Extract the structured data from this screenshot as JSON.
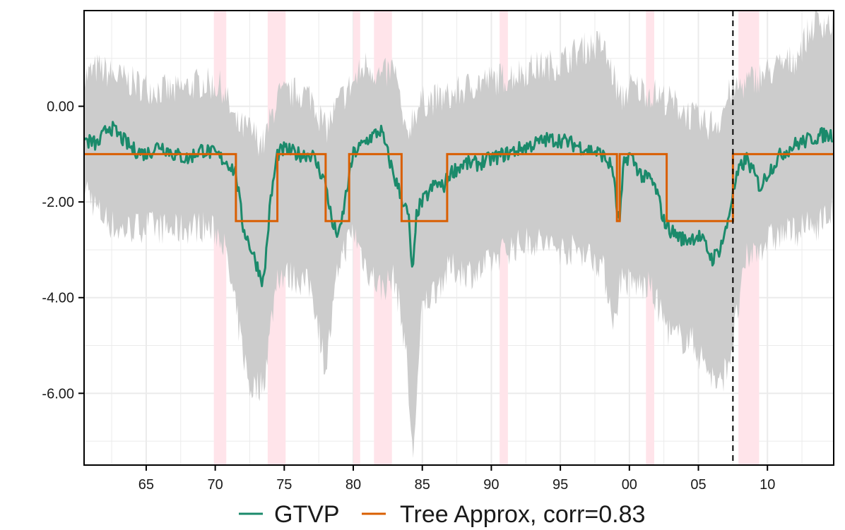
{
  "chart_data": {
    "type": "line",
    "title": "",
    "xlabel": "",
    "ylabel": "",
    "xlim": [
      1960.5,
      2014.8
    ],
    "ylim": [
      -7.5,
      2.0
    ],
    "grid": true,
    "legend_position": "bottom",
    "x_ticks": [
      1965,
      1970,
      1975,
      1980,
      1985,
      1990,
      1995,
      2000,
      2005,
      2010
    ],
    "x_tick_labels": [
      "65",
      "70",
      "75",
      "80",
      "85",
      "90",
      "95",
      "00",
      "05",
      "10"
    ],
    "y_ticks": [
      0,
      -2,
      -4,
      -6
    ],
    "y_tick_labels": [
      "0.00",
      "-2.00",
      "-4.00",
      "-6.00"
    ],
    "recession_bands": [
      [
        1969.9,
        1970.8
      ],
      [
        1973.8,
        1975.1
      ],
      [
        1980.0,
        1980.5
      ],
      [
        1981.5,
        1982.8
      ],
      [
        1990.6,
        1991.2
      ],
      [
        2001.2,
        2001.8
      ],
      [
        2007.9,
        2009.4
      ]
    ],
    "vline_x": 2007.5,
    "band_anchors": {
      "x": [
        1960.5,
        1961.5,
        1963.0,
        1965.0,
        1967.0,
        1969.0,
        1970.5,
        1971.5,
        1972.5,
        1973.5,
        1974.5,
        1976.0,
        1977.0,
        1978.0,
        1979.0,
        1980.0,
        1981.0,
        1982.0,
        1983.0,
        1983.8,
        1984.3,
        1985.0,
        1987.0,
        1989.0,
        1991.0,
        1993.0,
        1995.0,
        1996.5,
        1998.0,
        1999.0,
        1999.3,
        2000.0,
        2001.5,
        2003.0,
        2004.5,
        2005.5,
        2006.5,
        2007.3,
        2008.5,
        2010.0,
        2012.0,
        2013.5,
        2014.8
      ],
      "upper": [
        0.6,
        0.8,
        0.6,
        0.4,
        0.3,
        0.5,
        0.4,
        -0.4,
        -0.5,
        -0.8,
        0.2,
        0.3,
        0.2,
        -0.5,
        0.1,
        0.5,
        0.9,
        0.6,
        0.8,
        -0.7,
        -0.2,
        0.1,
        0.2,
        0.5,
        0.6,
        0.8,
        0.9,
        1.2,
        1.3,
        0.5,
        0.1,
        0.4,
        0.3,
        0.1,
        -0.2,
        -0.4,
        -0.3,
        0.3,
        0.5,
        0.7,
        1.0,
        1.8,
        1.7
      ],
      "lower": [
        -1.6,
        -2.2,
        -2.6,
        -2.5,
        -2.6,
        -2.5,
        -2.7,
        -4.3,
        -5.9,
        -5.8,
        -3.5,
        -3.6,
        -3.8,
        -5.5,
        -3.2,
        -2.6,
        -3.4,
        -3.8,
        -3.6,
        -5.0,
        -7.4,
        -4.2,
        -3.4,
        -3.5,
        -3.0,
        -2.8,
        -3.0,
        -3.0,
        -3.3,
        -4.6,
        -3.6,
        -3.7,
        -3.8,
        -4.8,
        -4.9,
        -5.4,
        -5.9,
        -5.2,
        -3.2,
        -2.8,
        -2.6,
        -2.5,
        -2.2
      ]
    },
    "gtvp_anchors": {
      "x": [
        1960.5,
        1961.5,
        1962.3,
        1963.0,
        1964.0,
        1965.0,
        1966.0,
        1967.0,
        1968.0,
        1969.0,
        1970.0,
        1970.5,
        1971.0,
        1971.5,
        1972.0,
        1973.0,
        1973.5,
        1974.0,
        1974.5,
        1975.0,
        1976.0,
        1977.0,
        1977.5,
        1978.0,
        1978.5,
        1979.0,
        1979.5,
        1980.0,
        1981.0,
        1982.0,
        1983.0,
        1983.5,
        1984.0,
        1984.3,
        1984.6,
        1985.0,
        1986.0,
        1986.5,
        1987.0,
        1988.0,
        1989.0,
        1990.0,
        1991.0,
        1992.0,
        1993.0,
        1994.0,
        1995.0,
        1996.0,
        1997.0,
        1998.0,
        1998.8,
        1999.1,
        1999.3,
        1999.6,
        2000.0,
        2001.0,
        2001.5,
        2002.0,
        2002.5,
        2003.0,
        2004.0,
        2005.0,
        2005.5,
        2006.0,
        2006.5,
        2007.0,
        2007.5,
        2008.0,
        2008.5,
        2009.0,
        2009.5,
        2010.0,
        2011.0,
        2012.0,
        2013.0,
        2014.0,
        2014.8
      ],
      "y": [
        -0.7,
        -0.8,
        -0.4,
        -0.6,
        -0.9,
        -1.0,
        -0.8,
        -1.0,
        -1.1,
        -0.9,
        -1.0,
        -1.1,
        -1.2,
        -1.4,
        -2.5,
        -3.3,
        -3.7,
        -2.0,
        -1.0,
        -0.9,
        -1.0,
        -1.0,
        -1.3,
        -1.6,
        -2.5,
        -2.7,
        -1.8,
        -1.0,
        -0.7,
        -0.5,
        -1.5,
        -1.9,
        -2.3,
        -3.6,
        -2.2,
        -2.0,
        -1.6,
        -1.7,
        -1.4,
        -1.2,
        -1.2,
        -1.1,
        -1.0,
        -0.9,
        -0.8,
        -0.7,
        -0.7,
        -0.8,
        -0.9,
        -1.0,
        -1.3,
        -2.2,
        -2.4,
        -1.2,
        -1.0,
        -1.5,
        -1.5,
        -1.8,
        -2.4,
        -2.6,
        -2.8,
        -2.7,
        -2.9,
        -3.2,
        -3.0,
        -2.6,
        -1.8,
        -1.3,
        -1.1,
        -1.4,
        -1.7,
        -1.4,
        -1.0,
        -0.8,
        -0.7,
        -0.6,
        -0.6
      ]
    },
    "series": [
      {
        "name": "GTVP",
        "color": "#1b8a6b"
      },
      {
        "name": "Tree Approx, corr=0.83",
        "color": "#d95f02",
        "step_x": [
          1960.5,
          1971.5,
          1971.5,
          1974.5,
          1974.5,
          1978.0,
          1978.0,
          1979.7,
          1979.7,
          1983.5,
          1983.5,
          1986.8,
          1986.8,
          1999.1,
          1999.1,
          1999.3,
          1999.3,
          2002.7,
          2002.7,
          2007.5,
          2007.5,
          2014.8
        ],
        "step_y": [
          -1.0,
          -1.0,
          -2.4,
          -2.4,
          -1.0,
          -1.0,
          -2.4,
          -2.4,
          -1.0,
          -1.0,
          -2.4,
          -2.4,
          -1.0,
          -1.0,
          -2.4,
          -2.4,
          -1.0,
          -1.0,
          -2.4,
          -2.4,
          -1.0,
          -1.0
        ]
      }
    ],
    "legend": [
      {
        "label": "GTVP",
        "color": "#1b8a6b"
      },
      {
        "label": "Tree Approx, corr=0.83",
        "color": "#d95f02"
      }
    ]
  },
  "colors": {
    "band": "#cccccc",
    "recession": "#ffe4ea",
    "grid": "#ebebeb",
    "axis": "#000000"
  }
}
